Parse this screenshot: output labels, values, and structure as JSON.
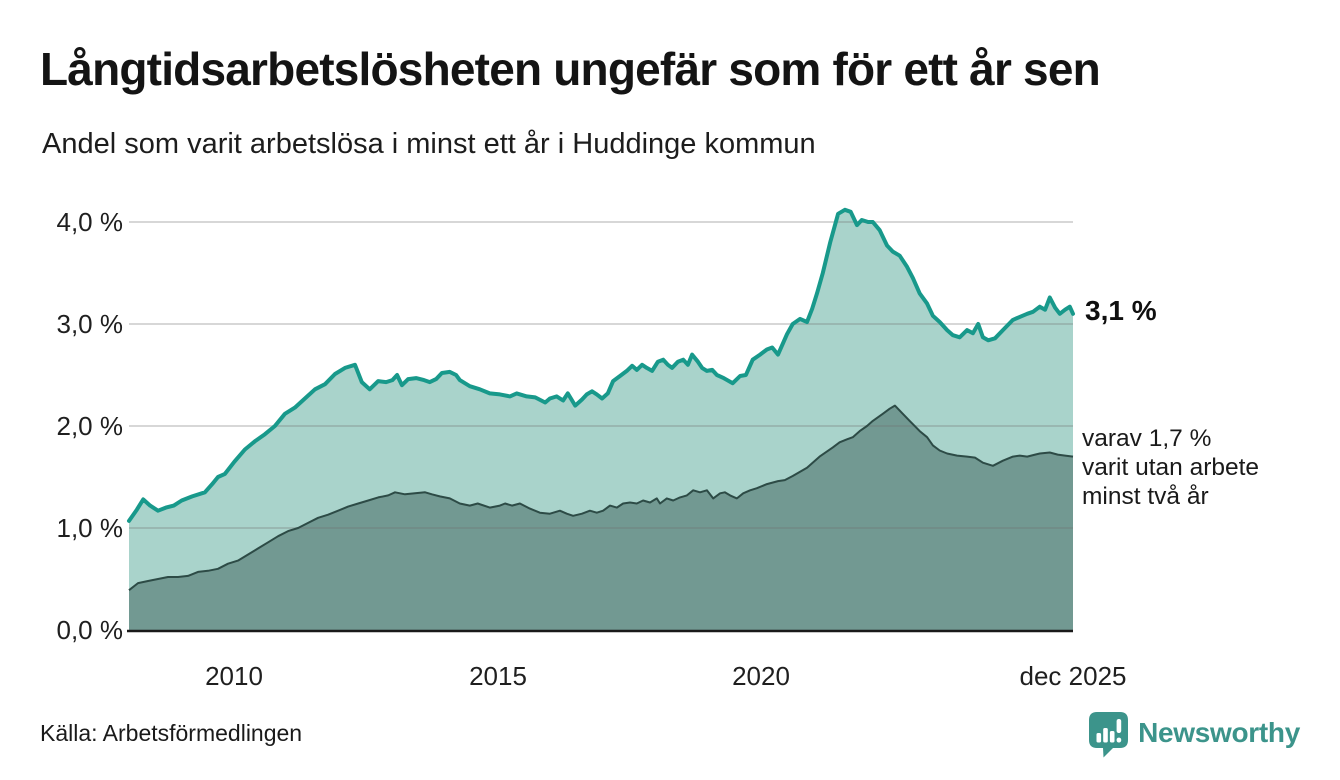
{
  "header": {
    "title": "Långtidsarbetslösheten ungefär som för ett år sen",
    "subtitle": "Andel som varit arbetslösa i minst ett år i Huddinge kommun"
  },
  "y_axis": {
    "ticks": [
      {
        "label": "4,0 %",
        "value": 4
      },
      {
        "label": "3,0 %",
        "value": 3
      },
      {
        "label": "2,0 %",
        "value": 2
      },
      {
        "label": "1,0 %",
        "value": 1
      },
      {
        "label": "0,0 %",
        "value": 0
      }
    ]
  },
  "x_axis": {
    "ticks": [
      {
        "label": "2010",
        "t": 2010
      },
      {
        "label": "2015",
        "t": 2015
      },
      {
        "label": "2020",
        "t": 2020
      },
      {
        "label": "dec 2025",
        "t": 2025.92
      }
    ]
  },
  "annotations": {
    "latest_total": "3,1 %",
    "subset_lines": [
      "varav 1,7 %",
      "varit utan arbete",
      "minst två år"
    ]
  },
  "footer": {
    "source": "Källa: Arbetsförmedlingen",
    "brand": "Newsworthy"
  },
  "colors": {
    "line_total": "#18998b",
    "fill_total": "#a9d3cb",
    "line_subset": "#2d4b46",
    "fill_subset": "#729992",
    "baseline": "#1a1a1a",
    "grid_overlay": "rgba(110,110,110,0.28)",
    "brand_teal": "#3c948b",
    "text": "#1a1a1a"
  },
  "chart_data": {
    "type": "area",
    "title": "Långtidsarbetslösheten ungefär som för ett år sen",
    "subtitle": "Andel som varit arbetslösa i minst ett år i Huddinge kommun",
    "unit": "%",
    "xlim": [
      2008.0,
      2025.92
    ],
    "ylim": [
      0,
      4.3
    ],
    "grid": true,
    "x_tick_labels": [
      "2010",
      "2015",
      "2020",
      "dec 2025"
    ],
    "y_tick_labels": [
      "0,0 %",
      "1,0 %",
      "2,0 %",
      "3,0 %",
      "4,0 %"
    ],
    "latest": {
      "total_min_one_year": 3.1,
      "of_which_min_two_years": 1.7
    },
    "series": [
      {
        "name": "Andel arbetslösa minst ett år",
        "points": [
          [
            2008.0,
            1.07
          ],
          [
            2008.15,
            1.18
          ],
          [
            2008.27,
            1.28
          ],
          [
            2008.4,
            1.22
          ],
          [
            2008.55,
            1.17
          ],
          [
            2008.7,
            1.2
          ],
          [
            2008.85,
            1.22
          ],
          [
            2009.0,
            1.27
          ],
          [
            2009.2,
            1.31
          ],
          [
            2009.44,
            1.35
          ],
          [
            2009.58,
            1.43
          ],
          [
            2009.69,
            1.5
          ],
          [
            2009.82,
            1.53
          ],
          [
            2010.0,
            1.65
          ],
          [
            2010.2,
            1.77
          ],
          [
            2010.39,
            1.85
          ],
          [
            2010.58,
            1.92
          ],
          [
            2010.77,
            2.0
          ],
          [
            2010.96,
            2.12
          ],
          [
            2011.15,
            2.18
          ],
          [
            2011.34,
            2.27
          ],
          [
            2011.53,
            2.36
          ],
          [
            2011.72,
            2.41
          ],
          [
            2011.91,
            2.51
          ],
          [
            2012.1,
            2.57
          ],
          [
            2012.29,
            2.6
          ],
          [
            2012.42,
            2.43
          ],
          [
            2012.57,
            2.36
          ],
          [
            2012.73,
            2.44
          ],
          [
            2012.88,
            2.43
          ],
          [
            2013.0,
            2.45
          ],
          [
            2013.09,
            2.5
          ],
          [
            2013.18,
            2.4
          ],
          [
            2013.3,
            2.46
          ],
          [
            2013.45,
            2.47
          ],
          [
            2013.6,
            2.45
          ],
          [
            2013.71,
            2.43
          ],
          [
            2013.83,
            2.46
          ],
          [
            2013.94,
            2.52
          ],
          [
            2014.09,
            2.53
          ],
          [
            2014.21,
            2.5
          ],
          [
            2014.28,
            2.45
          ],
          [
            2014.47,
            2.39
          ],
          [
            2014.66,
            2.36
          ],
          [
            2014.85,
            2.32
          ],
          [
            2015.04,
            2.31
          ],
          [
            2015.23,
            2.29
          ],
          [
            2015.36,
            2.32
          ],
          [
            2015.55,
            2.29
          ],
          [
            2015.71,
            2.28
          ],
          [
            2015.9,
            2.23
          ],
          [
            2015.99,
            2.27
          ],
          [
            2016.12,
            2.29
          ],
          [
            2016.24,
            2.25
          ],
          [
            2016.33,
            2.32
          ],
          [
            2016.47,
            2.2
          ],
          [
            2016.6,
            2.26
          ],
          [
            2016.69,
            2.31
          ],
          [
            2016.79,
            2.34
          ],
          [
            2016.88,
            2.31
          ],
          [
            2016.98,
            2.27
          ],
          [
            2017.09,
            2.32
          ],
          [
            2017.19,
            2.44
          ],
          [
            2017.32,
            2.49
          ],
          [
            2017.45,
            2.54
          ],
          [
            2017.55,
            2.59
          ],
          [
            2017.64,
            2.55
          ],
          [
            2017.74,
            2.6
          ],
          [
            2017.83,
            2.57
          ],
          [
            2017.93,
            2.54
          ],
          [
            2018.04,
            2.63
          ],
          [
            2018.14,
            2.65
          ],
          [
            2018.23,
            2.6
          ],
          [
            2018.31,
            2.57
          ],
          [
            2018.42,
            2.63
          ],
          [
            2018.52,
            2.65
          ],
          [
            2018.61,
            2.6
          ],
          [
            2018.69,
            2.7
          ],
          [
            2018.8,
            2.63
          ],
          [
            2018.88,
            2.57
          ],
          [
            2018.97,
            2.54
          ],
          [
            2019.07,
            2.55
          ],
          [
            2019.16,
            2.5
          ],
          [
            2019.29,
            2.47
          ],
          [
            2019.46,
            2.42
          ],
          [
            2019.6,
            2.49
          ],
          [
            2019.71,
            2.5
          ],
          [
            2019.84,
            2.65
          ],
          [
            2019.98,
            2.7
          ],
          [
            2020.11,
            2.75
          ],
          [
            2020.21,
            2.77
          ],
          [
            2020.32,
            2.7
          ],
          [
            2020.49,
            2.9
          ],
          [
            2020.6,
            3.0
          ],
          [
            2020.74,
            3.05
          ],
          [
            2020.87,
            3.02
          ],
          [
            2020.97,
            3.15
          ],
          [
            2021.06,
            3.3
          ],
          [
            2021.17,
            3.5
          ],
          [
            2021.31,
            3.8
          ],
          [
            2021.46,
            4.08
          ],
          [
            2021.59,
            4.12
          ],
          [
            2021.7,
            4.1
          ],
          [
            2021.82,
            3.97
          ],
          [
            2021.91,
            4.02
          ],
          [
            2022.03,
            4.0
          ],
          [
            2022.12,
            4.0
          ],
          [
            2022.25,
            3.92
          ],
          [
            2022.39,
            3.77
          ],
          [
            2022.5,
            3.71
          ],
          [
            2022.63,
            3.67
          ],
          [
            2022.77,
            3.56
          ],
          [
            2022.88,
            3.45
          ],
          [
            2023.01,
            3.3
          ],
          [
            2023.15,
            3.2
          ],
          [
            2023.26,
            3.08
          ],
          [
            2023.39,
            3.02
          ],
          [
            2023.53,
            2.94
          ],
          [
            2023.64,
            2.89
          ],
          [
            2023.77,
            2.87
          ],
          [
            2023.91,
            2.94
          ],
          [
            2024.02,
            2.91
          ],
          [
            2024.12,
            3.0
          ],
          [
            2024.21,
            2.87
          ],
          [
            2024.31,
            2.84
          ],
          [
            2024.44,
            2.86
          ],
          [
            2024.59,
            2.94
          ],
          [
            2024.78,
            3.04
          ],
          [
            2024.91,
            3.07
          ],
          [
            2025.05,
            3.1
          ],
          [
            2025.16,
            3.12
          ],
          [
            2025.29,
            3.17
          ],
          [
            2025.39,
            3.14
          ],
          [
            2025.48,
            3.26
          ],
          [
            2025.58,
            3.16
          ],
          [
            2025.67,
            3.1
          ],
          [
            2025.77,
            3.14
          ],
          [
            2025.86,
            3.17
          ],
          [
            2025.92,
            3.1
          ]
        ]
      },
      {
        "name": "varav utan arbete minst två år",
        "points": [
          [
            2008.0,
            0.39
          ],
          [
            2008.17,
            0.46
          ],
          [
            2008.36,
            0.48
          ],
          [
            2008.55,
            0.5
          ],
          [
            2008.74,
            0.52
          ],
          [
            2008.93,
            0.52
          ],
          [
            2009.12,
            0.53
          ],
          [
            2009.31,
            0.57
          ],
          [
            2009.5,
            0.58
          ],
          [
            2009.69,
            0.6
          ],
          [
            2009.88,
            0.65
          ],
          [
            2010.07,
            0.68
          ],
          [
            2010.26,
            0.74
          ],
          [
            2010.45,
            0.8
          ],
          [
            2010.64,
            0.86
          ],
          [
            2010.83,
            0.92
          ],
          [
            2011.02,
            0.97
          ],
          [
            2011.21,
            1.0
          ],
          [
            2011.4,
            1.05
          ],
          [
            2011.59,
            1.1
          ],
          [
            2011.78,
            1.13
          ],
          [
            2011.97,
            1.17
          ],
          [
            2012.16,
            1.21
          ],
          [
            2012.35,
            1.24
          ],
          [
            2012.54,
            1.27
          ],
          [
            2012.73,
            1.3
          ],
          [
            2012.92,
            1.32
          ],
          [
            2013.05,
            1.35
          ],
          [
            2013.24,
            1.33
          ],
          [
            2013.43,
            1.34
          ],
          [
            2013.62,
            1.35
          ],
          [
            2013.75,
            1.33
          ],
          [
            2013.9,
            1.31
          ],
          [
            2014.09,
            1.29
          ],
          [
            2014.28,
            1.24
          ],
          [
            2014.47,
            1.22
          ],
          [
            2014.62,
            1.24
          ],
          [
            2014.85,
            1.2
          ],
          [
            2015.04,
            1.22
          ],
          [
            2015.14,
            1.24
          ],
          [
            2015.27,
            1.22
          ],
          [
            2015.42,
            1.24
          ],
          [
            2015.61,
            1.19
          ],
          [
            2015.8,
            1.15
          ],
          [
            2015.99,
            1.14
          ],
          [
            2016.18,
            1.17
          ],
          [
            2016.31,
            1.14
          ],
          [
            2016.43,
            1.12
          ],
          [
            2016.6,
            1.14
          ],
          [
            2016.75,
            1.17
          ],
          [
            2016.88,
            1.15
          ],
          [
            2017.0,
            1.17
          ],
          [
            2017.13,
            1.22
          ],
          [
            2017.26,
            1.2
          ],
          [
            2017.38,
            1.24
          ],
          [
            2017.51,
            1.25
          ],
          [
            2017.64,
            1.24
          ],
          [
            2017.76,
            1.27
          ],
          [
            2017.89,
            1.25
          ],
          [
            2018.02,
            1.29
          ],
          [
            2018.08,
            1.24
          ],
          [
            2018.21,
            1.29
          ],
          [
            2018.33,
            1.27
          ],
          [
            2018.46,
            1.3
          ],
          [
            2018.59,
            1.32
          ],
          [
            2018.71,
            1.37
          ],
          [
            2018.84,
            1.35
          ],
          [
            2018.97,
            1.37
          ],
          [
            2019.09,
            1.29
          ],
          [
            2019.22,
            1.34
          ],
          [
            2019.31,
            1.35
          ],
          [
            2019.41,
            1.32
          ],
          [
            2019.54,
            1.29
          ],
          [
            2019.66,
            1.34
          ],
          [
            2019.79,
            1.37
          ],
          [
            2019.92,
            1.39
          ],
          [
            2020.11,
            1.43
          ],
          [
            2020.32,
            1.46
          ],
          [
            2020.45,
            1.47
          ],
          [
            2020.6,
            1.51
          ],
          [
            2020.87,
            1.59
          ],
          [
            2021.11,
            1.7
          ],
          [
            2021.36,
            1.79
          ],
          [
            2021.49,
            1.84
          ],
          [
            2021.63,
            1.87
          ],
          [
            2021.74,
            1.89
          ],
          [
            2021.87,
            1.95
          ],
          [
            2022.01,
            2.0
          ],
          [
            2022.12,
            2.05
          ],
          [
            2022.31,
            2.12
          ],
          [
            2022.44,
            2.17
          ],
          [
            2022.54,
            2.2
          ],
          [
            2022.69,
            2.12
          ],
          [
            2022.82,
            2.05
          ],
          [
            2023.01,
            1.95
          ],
          [
            2023.15,
            1.89
          ],
          [
            2023.26,
            1.81
          ],
          [
            2023.39,
            1.76
          ],
          [
            2023.53,
            1.73
          ],
          [
            2023.72,
            1.71
          ],
          [
            2023.91,
            1.7
          ],
          [
            2024.06,
            1.69
          ],
          [
            2024.21,
            1.64
          ],
          [
            2024.4,
            1.61
          ],
          [
            2024.59,
            1.66
          ],
          [
            2024.78,
            1.7
          ],
          [
            2024.91,
            1.71
          ],
          [
            2025.05,
            1.7
          ],
          [
            2025.2,
            1.72
          ],
          [
            2025.29,
            1.73
          ],
          [
            2025.48,
            1.74
          ],
          [
            2025.63,
            1.72
          ],
          [
            2025.77,
            1.71
          ],
          [
            2025.92,
            1.7
          ]
        ]
      }
    ]
  }
}
